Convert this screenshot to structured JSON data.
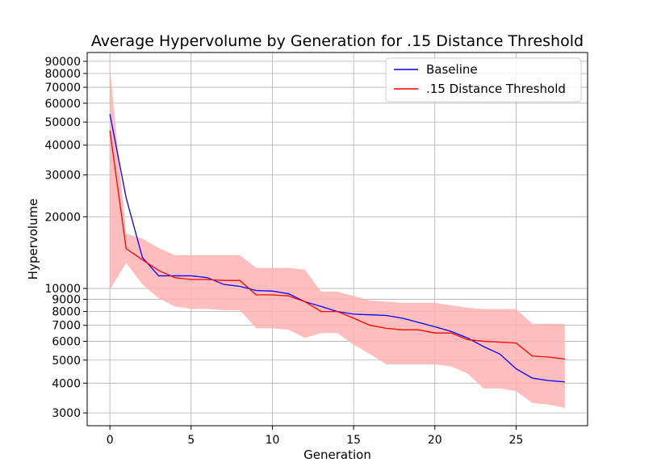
{
  "chart_data": {
    "type": "line",
    "title": "Average Hypervolume by Generation for .15 Distance Threshold",
    "xlabel": "Generation",
    "ylabel": "Hypervolume",
    "yscale": "log",
    "xlim": [
      -1.4,
      29.4
    ],
    "ylim": [
      2650,
      98000
    ],
    "grid": true,
    "legend_position": "top-right",
    "x_ticks": [
      0,
      5,
      10,
      15,
      20,
      25
    ],
    "x_tick_labels": [
      "0",
      "5",
      "10",
      "15",
      "20",
      "25"
    ],
    "y_ticks": [
      3000,
      4000,
      5000,
      6000,
      7000,
      8000,
      9000,
      10000,
      20000,
      30000,
      40000,
      50000,
      60000,
      70000,
      80000,
      90000
    ],
    "y_tick_labels": [
      "3000",
      "4000",
      "5000",
      "6000",
      "7000",
      "8000",
      "9000",
      "10000",
      "20000",
      "30000",
      "40000",
      "50000",
      "60000",
      "70000",
      "80000",
      "90000"
    ],
    "x": [
      0,
      1,
      2,
      3,
      4,
      5,
      6,
      7,
      8,
      9,
      10,
      11,
      12,
      13,
      14,
      15,
      16,
      17,
      18,
      19,
      20,
      21,
      22,
      23,
      24,
      25,
      26,
      27,
      28
    ],
    "series": [
      {
        "name": "Baseline",
        "color": "#0000ff",
        "values": [
          54000,
          24000,
          13500,
          11300,
          11300,
          11300,
          11100,
          10400,
          10200,
          9800,
          9750,
          9500,
          8800,
          8400,
          8000,
          7800,
          7750,
          7700,
          7500,
          7200,
          6900,
          6600,
          6200,
          5700,
          5300,
          4600,
          4200,
          4100,
          4050
        ]
      },
      {
        "name": ".15 Distance Threshold",
        "color": "#ff0000",
        "values": [
          46000,
          14700,
          13200,
          11900,
          11100,
          10900,
          10900,
          10800,
          10800,
          9400,
          9400,
          9300,
          8800,
          8000,
          8000,
          7500,
          7000,
          6800,
          6700,
          6700,
          6500,
          6500,
          6100,
          6000,
          5950,
          5900,
          5200,
          5150,
          5050
        ],
        "band": {
          "color": "#ffb3b3",
          "upper": [
            85000,
            17000,
            16200,
            14800,
            13800,
            13800,
            13800,
            13800,
            13800,
            12200,
            12200,
            12200,
            12000,
            9700,
            9700,
            9300,
            8900,
            8800,
            8700,
            8700,
            8700,
            8500,
            8300,
            8200,
            8200,
            8200,
            7100,
            7100,
            7100
          ],
          "lower": [
            9900,
            12800,
            10400,
            9100,
            8400,
            8200,
            8200,
            8100,
            8100,
            6800,
            6800,
            6700,
            6200,
            6500,
            6500,
            5800,
            5300,
            4800,
            4800,
            4800,
            4800,
            4700,
            4400,
            3800,
            3800,
            3700,
            3300,
            3250,
            3150
          ]
        }
      }
    ]
  }
}
